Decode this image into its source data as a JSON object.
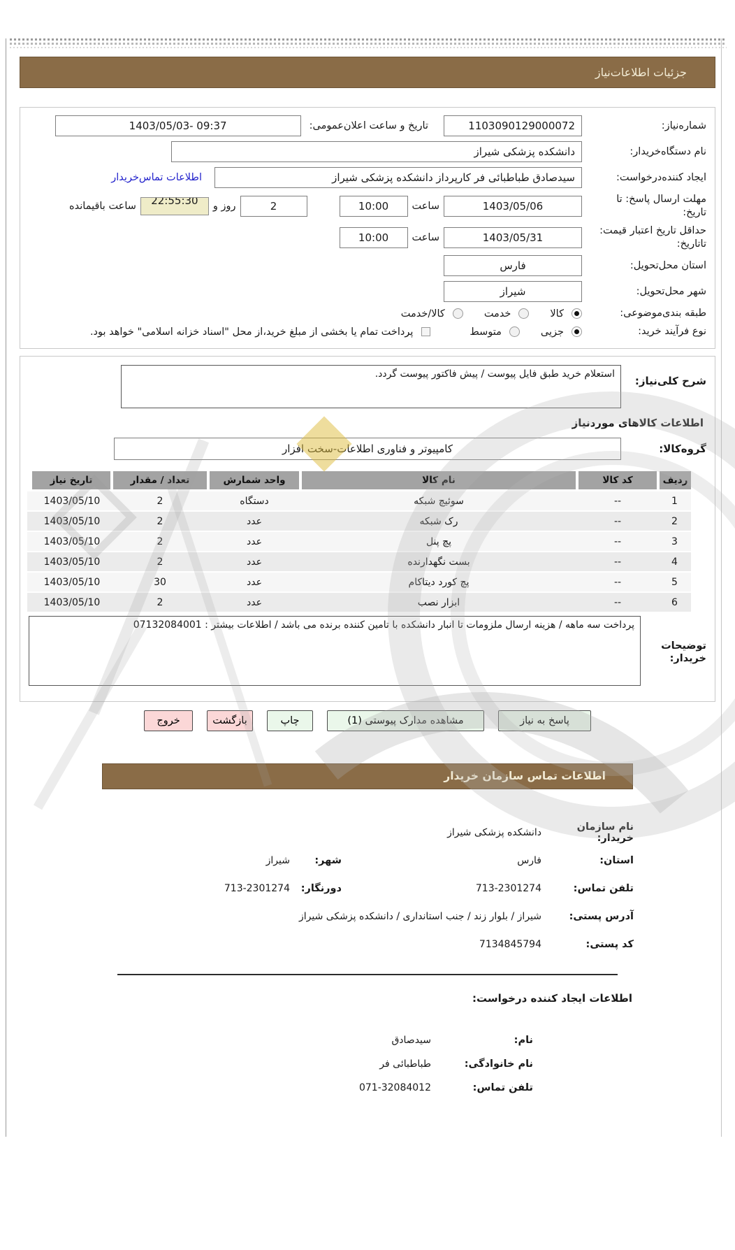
{
  "section1": {
    "title": "جزئیات اطلاعات‌نیاز",
    "need_number_label": "شماره‌نیاز:",
    "need_number": "1103090129000072",
    "announce_label": "تاریخ و ساعت اعلان‌عمومی:",
    "announce_value": "1403/05/03- 09:37",
    "buyer_name_label": "نام دستگاه‌خریدار:",
    "buyer_name": "دانشکده پزشکی شیراز",
    "creator_label": "ایجاد کننده‌درخواست:",
    "creator_value": "سیدصادق طباطبائی فر کارپرداز دانشکده پزشکی شیراز",
    "creator_link": "اطلاعات تماس‌خریدار",
    "deadline_label": "مهلت ارسال پاسخ: تا تاریخ:",
    "deadline_date": "1403/05/06",
    "hour_label": "ساعت",
    "deadline_time": "10:00",
    "days_value": "2",
    "days_label": "روز و",
    "timer_value": "22:55:30",
    "timer_label": "ساعت باقیمانده",
    "validity_label": "حداقل تاریخ اعتبار قیمت: تاتاریخ:",
    "validity_date": "1403/05/31",
    "validity_time": "10:00",
    "province_label": "استان محل‌تحویل:",
    "province": "فارس",
    "city_label": "شهر محل‌تحویل:",
    "city": "شیراز",
    "category_label": "طبقه بندی‌موضوعی:",
    "category_options": [
      {
        "label": "کالا",
        "selected": true
      },
      {
        "label": "خدمت",
        "selected": false
      },
      {
        "label": "کالا/خدمت",
        "selected": false
      }
    ],
    "process_label": "نوع فرآیند خرید:",
    "process_options": [
      {
        "label": "جزیی",
        "selected": true
      },
      {
        "label": "متوسط",
        "selected": false
      }
    ],
    "treasury_checkbox_checked": false,
    "treasury_checkbox_label": "پرداخت تمام یا بخشی از مبلغ خرید،از محل \"اسناد خزانه اسلامی\" خواهد بود."
  },
  "section2": {
    "need_desc_label": "شرح کلی‌نیاز:",
    "need_desc": "استعلام خرید طبق فایل پیوست / پیش فاکتور پیوست گردد.",
    "items_heading": "اطلاعات کالاهای موردنیاز",
    "group_label": "گروه‌کالا:",
    "group_value": "کامپیوتر و فناوری اطلاعات-سخت افزار",
    "table": {
      "headers": [
        "ردیف",
        "کد کالا",
        "نام کالا",
        "واحد شمارش",
        "تعداد / مقدار",
        "تاریخ نیاز"
      ],
      "rows": [
        [
          "1",
          "--",
          "سوئیچ شبکه",
          "دستگاه",
          "2",
          "1403/05/10"
        ],
        [
          "2",
          "--",
          "رک شبکه",
          "عدد",
          "2",
          "1403/05/10"
        ],
        [
          "3",
          "--",
          "پچ پنل",
          "عدد",
          "2",
          "1403/05/10"
        ],
        [
          "4",
          "--",
          "بست نگهدارنده",
          "عدد",
          "2",
          "1403/05/10"
        ],
        [
          "5",
          "--",
          "پچ کورد دیتاکام",
          "عدد",
          "30",
          "1403/05/10"
        ],
        [
          "6",
          "--",
          "ابزار نصب",
          "عدد",
          "2",
          "1403/05/10"
        ]
      ]
    },
    "buyer_notes_label": "توضیحات خریدار:",
    "buyer_notes": "پرداخت سه ماهه / هزینه ارسال ملزومات تا انبار دانشکده با تامین کننده برنده می باشد / اطلاعات بیشتر : 07132084001"
  },
  "buttons": [
    {
      "label": "پاسخ به نیاز",
      "style": "green"
    },
    {
      "label": "مشاهده مدارک پیوستی (1)",
      "style": "green"
    },
    {
      "label": "چاپ",
      "style": "green"
    },
    {
      "label": "بازگشت",
      "style": "pink"
    },
    {
      "label": "خروج",
      "style": "pink"
    }
  ],
  "contact": {
    "title": "اطلاعات تماس سازمان خریدار",
    "org_label": "نام سازمان خریدار:",
    "org": "دانشکده پزشکی شیراز",
    "province_label": "استان:",
    "province": "فارس",
    "city_label": "شهر:",
    "city": "شیراز",
    "phone_label": "تلفن تماس:",
    "phone": "713-2301274",
    "fax_label": "دورنگار:",
    "fax": "713-2301274",
    "address_label": "آدرس پستی:",
    "address": "شیراز / بلوار زند / جنب استانداری / دانشکده پزشکی شیراز",
    "postal_label": "کد پستی:",
    "postal": "7134845794"
  },
  "creator": {
    "title": "اطلاعات ایجاد کننده درخواست:",
    "first_name_label": "نام:",
    "first_name": "سیدصادق",
    "last_name_label": "نام خانوادگی:",
    "last_name": "طباطبائی فر",
    "phone_label": "تلفن تماس:",
    "phone": "071-32084012"
  },
  "colors": {
    "header_brown": "#8a6c47",
    "link_blue": "#2323cc",
    "timer_beige": "#efecc8",
    "button_green": "#eaf7ea",
    "button_pink": "#fbd7d7"
  }
}
